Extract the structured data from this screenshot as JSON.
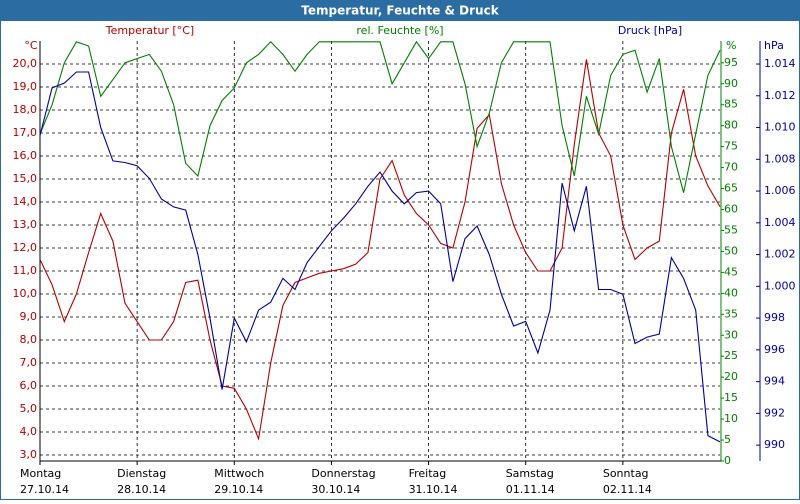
{
  "chart_data": {
    "type": "line",
    "title": "Temperatur, Feuchte & Druck",
    "ylabel": "°C",
    "y2label": "%",
    "y3label": "hPa",
    "grid": true,
    "xlim": [
      0,
      7
    ],
    "xticks": [
      {
        "value": 0,
        "label": "27.10.14",
        "day": "Montag"
      },
      {
        "value": 1,
        "label": "28.10.14",
        "day": "Dienstag"
      },
      {
        "value": 2,
        "label": "29.10.14",
        "day": "Mittwoch"
      },
      {
        "value": 3,
        "label": "30.10.14",
        "day": "Donnerstag"
      },
      {
        "value": 4,
        "label": "31.10.14",
        "day": "Freitag"
      },
      {
        "value": 5,
        "label": "01.11.14",
        "day": "Samstag"
      },
      {
        "value": 6,
        "label": "02.11.14",
        "day": "Sonntag"
      }
    ],
    "ylim": [
      2.74,
      21.0
    ],
    "yticks": [
      {
        "value": 3,
        "label": "3,0"
      },
      {
        "value": 4,
        "label": "4,0"
      },
      {
        "value": 5,
        "label": "5,0"
      },
      {
        "value": 6,
        "label": "6,0"
      },
      {
        "value": 7,
        "label": "7,0"
      },
      {
        "value": 8,
        "label": "8,0"
      },
      {
        "value": 9,
        "label": "9,0"
      },
      {
        "value": 10,
        "label": "10,0"
      },
      {
        "value": 11,
        "label": "11,0"
      },
      {
        "value": 12,
        "label": "12,0"
      },
      {
        "value": 13,
        "label": "13,0"
      },
      {
        "value": 14,
        "label": "14,0"
      },
      {
        "value": 15,
        "label": "15,0"
      },
      {
        "value": 16,
        "label": "16,0"
      },
      {
        "value": 17,
        "label": "17,0"
      },
      {
        "value": 18,
        "label": "18,0"
      },
      {
        "value": 19,
        "label": "19,0"
      },
      {
        "value": 20,
        "label": "20,0"
      }
    ],
    "y2lim": [
      0,
      100.2
    ],
    "y2ticks": [
      0,
      5,
      10,
      15,
      20,
      25,
      30,
      35,
      40,
      45,
      50,
      55,
      60,
      65,
      70,
      75,
      80,
      85,
      90,
      95
    ],
    "y3lim": [
      989.0,
      1015.45
    ],
    "y3ticks": [
      990,
      992,
      994,
      996,
      998,
      {
        "value": 1000,
        "label": "1.000"
      },
      {
        "value": 1002,
        "label": "1.002"
      },
      {
        "value": 1004,
        "label": "1.004"
      },
      {
        "value": 1006,
        "label": "1.006"
      },
      {
        "value": 1008,
        "label": "1.008"
      },
      {
        "value": 1010,
        "label": "1.010"
      },
      {
        "value": 1012,
        "label": "1.012"
      },
      {
        "value": 1014,
        "label": "1.014"
      }
    ],
    "x": [
      0,
      0.125,
      0.25,
      0.375,
      0.5,
      0.625,
      0.75,
      0.875,
      1,
      1.125,
      1.25,
      1.375,
      1.5,
      1.625,
      1.75,
      1.875,
      2,
      2.125,
      2.25,
      2.375,
      2.5,
      2.625,
      2.75,
      2.875,
      3,
      3.125,
      3.25,
      3.375,
      3.5,
      3.625,
      3.75,
      3.875,
      4,
      4.125,
      4.25,
      4.375,
      4.5,
      4.625,
      4.75,
      4.875,
      5,
      5.125,
      5.25,
      5.375,
      5.5,
      5.625,
      5.75,
      5.875,
      6,
      6.125,
      6.25,
      6.375,
      6.5,
      6.625,
      6.75,
      6.875,
      7
    ],
    "series": [
      {
        "name": "Temperatur [°C]",
        "color": "#b40000",
        "axis": "y",
        "values": [
          11.5,
          10.4,
          8.8,
          10.0,
          11.8,
          13.5,
          12.3,
          9.6,
          8.8,
          8.0,
          8.0,
          8.8,
          10.5,
          10.6,
          8.0,
          6.0,
          5.9,
          5.0,
          3.7,
          7.0,
          9.5,
          10.5,
          10.7,
          10.9,
          11.0,
          11.1,
          11.3,
          11.8,
          15.0,
          15.8,
          14.3,
          13.5,
          13.0,
          12.2,
          12.0,
          14.0,
          17.2,
          17.8,
          14.8,
          13.0,
          11.8,
          11.0,
          11.0,
          12.0,
          16.5,
          20.2,
          17.0,
          16.0,
          13.0,
          11.5,
          12.0,
          12.3,
          17.0,
          18.9,
          16.0,
          14.7,
          13.8
        ]
      },
      {
        "name": "rel. Feuchte [%]",
        "color": "#008000",
        "axis": "y2",
        "values": [
          78,
          85,
          95,
          100,
          99,
          87,
          91,
          95,
          96,
          97,
          93,
          85,
          71,
          68,
          80,
          86,
          89,
          95,
          97,
          100,
          97,
          93,
          97,
          100,
          100,
          100,
          100,
          100,
          100,
          90,
          95,
          100,
          96,
          100,
          100,
          90,
          75,
          83,
          95,
          100,
          100,
          100,
          100,
          80,
          68,
          87,
          78,
          92,
          97,
          98,
          88,
          96,
          75,
          64,
          78,
          92,
          98
        ]
      },
      {
        "name": "Druck [hPa]",
        "color": "#0000a0",
        "axis": "y3",
        "values": [
          1009.5,
          1012.5,
          1012.8,
          1013.5,
          1013.5,
          1010.0,
          1007.9,
          1007.8,
          1007.6,
          1006.8,
          1005.5,
          1005.0,
          1004.8,
          1002.0,
          998.0,
          993.5,
          998.0,
          996.5,
          998.5,
          999.0,
          1000.5,
          999.8,
          1001.5,
          1002.5,
          1003.5,
          1004.3,
          1005.2,
          1006.3,
          1007.2,
          1006.0,
          1005.2,
          1005.9,
          1006.0,
          1005.2,
          1000.3,
          1003.0,
          1003.8,
          1002.0,
          999.5,
          997.5,
          997.8,
          995.8,
          998.5,
          1006.5,
          1003.5,
          1006.3,
          999.8,
          999.8,
          999.5,
          996.4,
          996.8,
          997.0,
          1001.8,
          1000.5,
          998.5,
          990.6,
          990.2
        ]
      }
    ]
  }
}
